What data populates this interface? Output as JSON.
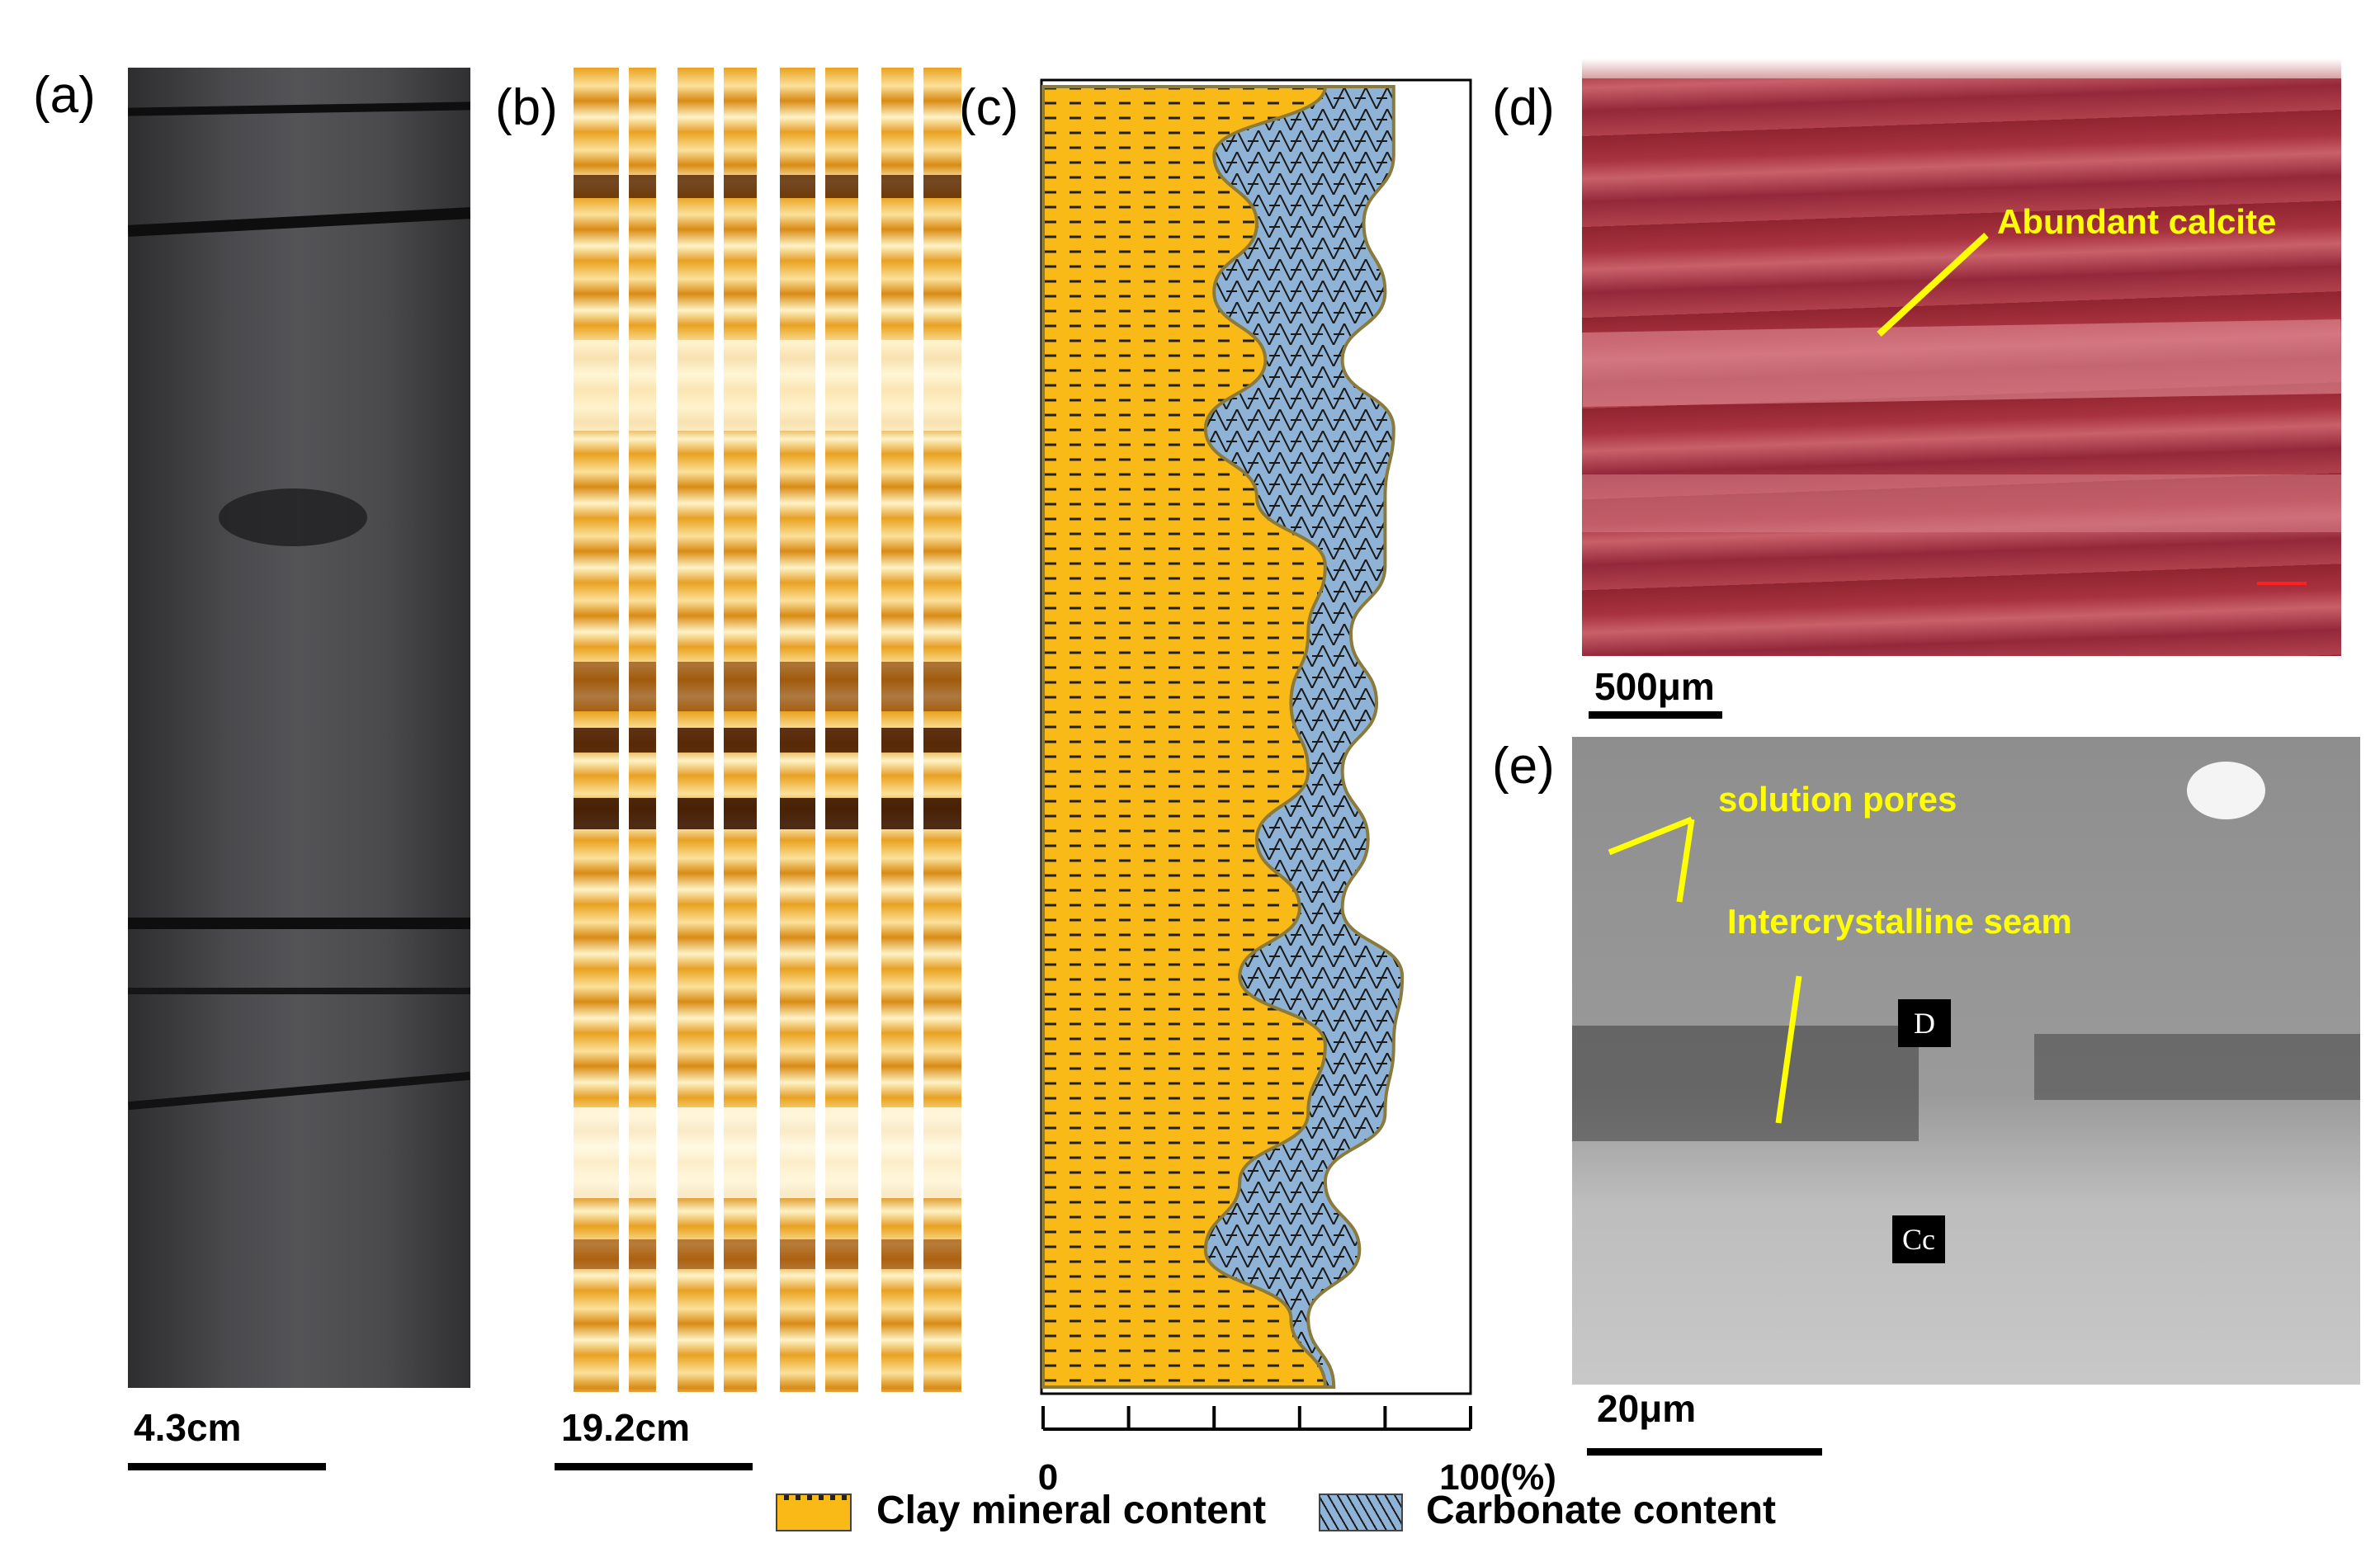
{
  "panels": {
    "a": {
      "letter": "(a)",
      "scale": "4.3cm"
    },
    "b": {
      "letter": "(b)",
      "scale": "19.2cm"
    },
    "c": {
      "letter": "(c)",
      "axis_min": "0",
      "axis_max": "100(%)"
    },
    "d": {
      "letter": "(d)",
      "scale": "500μm",
      "annotation": "Abundant calcite"
    },
    "e": {
      "letter": "(e)",
      "scale": "20μm",
      "annotation_pores": "solution pores",
      "annotation_seam": "Intercrystalline seam",
      "tag_dolomite": "D",
      "tag_calcite": "Cc"
    }
  },
  "legend": {
    "clay_label": "Clay mineral content",
    "carbonate_label": "Carbonate content"
  },
  "colors": {
    "clay": "#f9b916",
    "carbonate": "#8fb3d6",
    "annotation": "#ffff00",
    "core_dark": "#3a3a3c",
    "thin_section": "#a8323f"
  },
  "chart_data": {
    "type": "area",
    "xlim": [
      0,
      100
    ],
    "x_ticks": [
      0,
      100
    ],
    "xlabel": "",
    "ylabel": "",
    "series": [
      {
        "name": "Clay mineral content",
        "values": [
          66,
          40,
          50,
          40,
          52,
          38,
          50,
          66,
          62,
          58,
          62,
          50,
          60,
          46,
          66,
          62,
          46,
          38,
          58,
          66
        ]
      },
      {
        "name": "Carbonate content",
        "values": [
          82,
          82,
          75,
          80,
          70,
          82,
          80,
          80,
          72,
          78,
          70,
          76,
          70,
          84,
          82,
          80,
          66,
          74,
          62,
          68
        ]
      }
    ]
  }
}
